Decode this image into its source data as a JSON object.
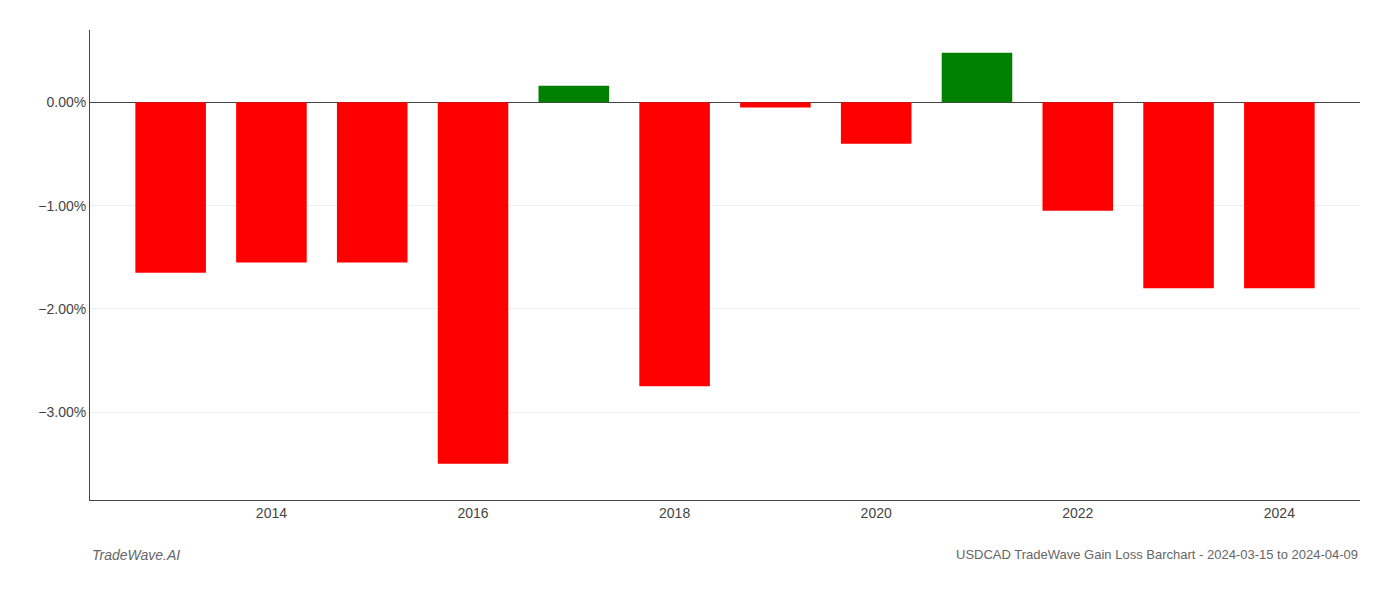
{
  "chart_data": {
    "type": "bar",
    "x": [
      2013,
      2014,
      2015,
      2016,
      2017,
      2018,
      2019,
      2020,
      2021,
      2022,
      2023,
      2024
    ],
    "values": [
      -1.65,
      -1.55,
      -1.55,
      -3.5,
      0.16,
      -2.75,
      -0.05,
      -0.4,
      0.48,
      -1.05,
      -1.8,
      -1.8
    ],
    "colors": [
      "#ff0000",
      "#ff0000",
      "#ff0000",
      "#ff0000",
      "#008000",
      "#ff0000",
      "#ff0000",
      "#ff0000",
      "#008000",
      "#ff0000",
      "#ff0000",
      "#ff0000"
    ],
    "xlim": [
      2012.2,
      2024.8
    ],
    "xticks": [
      2014,
      2016,
      2018,
      2020,
      2022,
      2024
    ],
    "ylim": [
      -3.85,
      0.7
    ],
    "yticks": [
      {
        "value": 0,
        "label": "0.00%"
      },
      {
        "value": -1,
        "label": "−1.00%"
      },
      {
        "value": -2,
        "label": "−2.00%"
      },
      {
        "value": -3,
        "label": "−3.00%"
      }
    ],
    "grid": true,
    "annotations": [
      "TradeWave.AI",
      "USDCAD TradeWave Gain Loss Barchart - 2024-03-15 to 2024-04-09"
    ]
  }
}
